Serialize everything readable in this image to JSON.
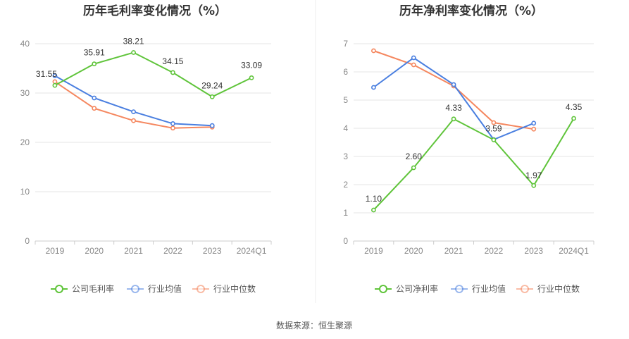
{
  "chart_data": [
    {
      "type": "line",
      "title": "历年毛利率变化情况（%）",
      "categories": [
        "2019",
        "2020",
        "2021",
        "2022",
        "2023",
        "2024Q1"
      ],
      "ylim": [
        0,
        40
      ],
      "yticks": [
        0,
        10,
        20,
        30,
        40
      ],
      "grid": true,
      "legend_position": "bottom",
      "series": [
        {
          "name": "公司毛利率",
          "color": "#5fc43a",
          "values": [
            31.55,
            35.91,
            38.21,
            34.15,
            29.24,
            33.09
          ],
          "labels": [
            "31.55",
            "35.91",
            "38.21",
            "34.15",
            "29.24",
            "33.09"
          ]
        },
        {
          "name": "行业均值",
          "color": "#4a7fe0",
          "values": [
            33.5,
            29.0,
            26.2,
            23.8,
            23.4,
            null
          ],
          "labels": []
        },
        {
          "name": "行业中位数",
          "color": "#f5875f",
          "values": [
            32.3,
            26.9,
            24.4,
            22.9,
            23.1,
            null
          ],
          "labels": []
        }
      ]
    },
    {
      "type": "line",
      "title": "历年净利率变化情况（%）",
      "categories": [
        "2019",
        "2020",
        "2021",
        "2022",
        "2023",
        "2024Q1"
      ],
      "ylim": [
        0,
        7
      ],
      "yticks": [
        0,
        1,
        2,
        3,
        4,
        5,
        6,
        7
      ],
      "grid": true,
      "legend_position": "bottom",
      "series": [
        {
          "name": "公司净利率",
          "color": "#5fc43a",
          "values": [
            1.1,
            2.6,
            4.33,
            3.59,
            1.97,
            4.35
          ],
          "labels": [
            "1.10",
            "2.60",
            "4.33",
            "3.59",
            "1.97",
            "4.35"
          ]
        },
        {
          "name": "行业均值",
          "color": "#4a7fe0",
          "values": [
            5.45,
            6.5,
            5.55,
            3.6,
            4.18,
            null
          ],
          "labels": []
        },
        {
          "name": "行业中位数",
          "color": "#f5875f",
          "values": [
            6.75,
            6.25,
            5.5,
            4.2,
            3.97,
            null
          ],
          "labels": []
        }
      ]
    }
  ],
  "source": "数据来源：恒生聚源"
}
